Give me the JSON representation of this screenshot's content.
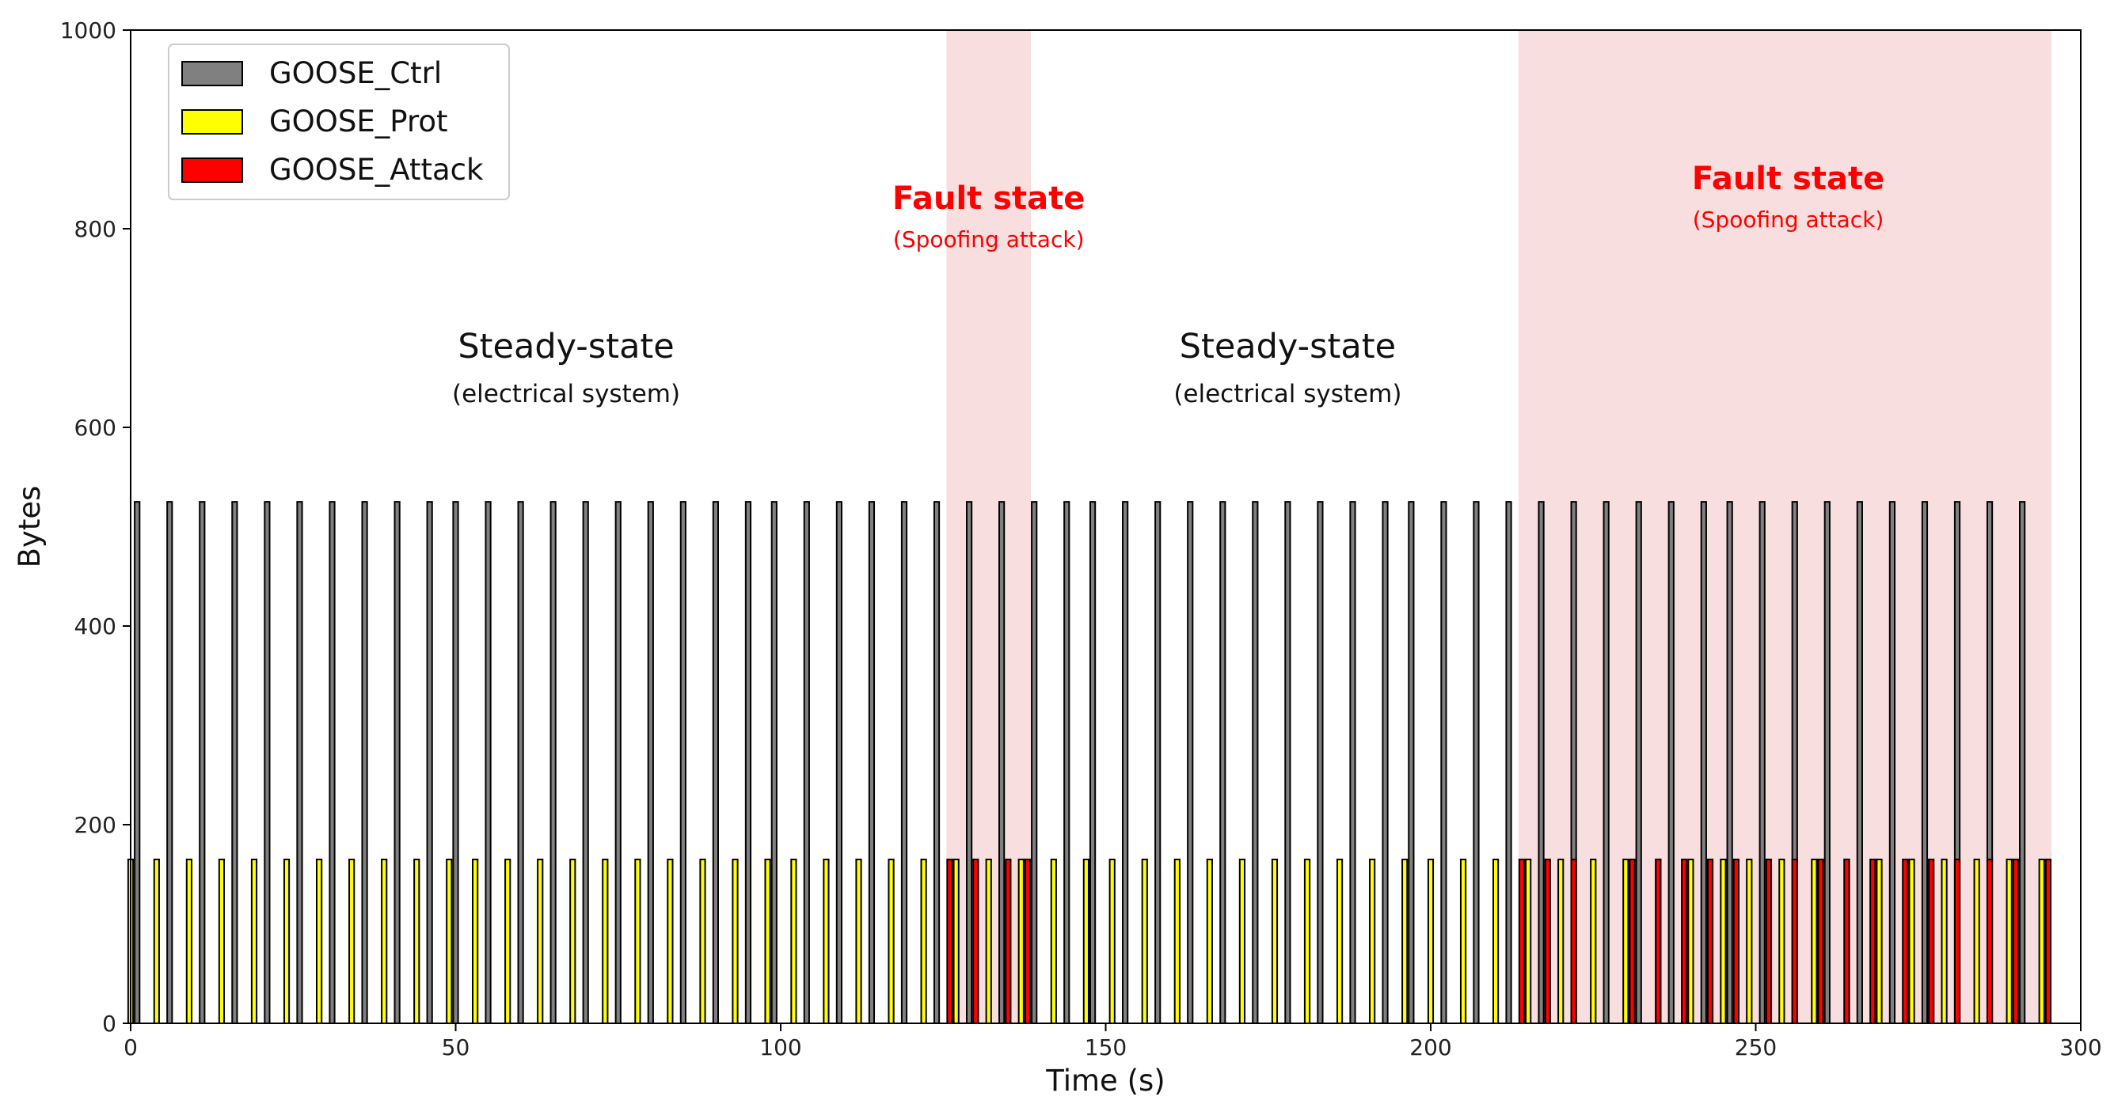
{
  "colors": {
    "ctrl": "#808080",
    "prot": "#ffff00",
    "attack": "#ff0000",
    "fault_region": "#f8dede",
    "fault_text": "#ff0000",
    "bar_edge": "#000000"
  },
  "chart_data": {
    "type": "bar",
    "title": "",
    "xlabel": "Time (s)",
    "ylabel": "Bytes",
    "xlim": [
      0,
      300
    ],
    "ylim": [
      0,
      1000
    ],
    "x_ticks": [
      0,
      50,
      100,
      150,
      200,
      250,
      300
    ],
    "y_ticks": [
      0,
      200,
      400,
      600,
      800,
      1000
    ],
    "grid": false,
    "legend_position": "top-left",
    "legend": [
      "GOOSE_Ctrl",
      "GOOSE_Prot",
      "GOOSE_Attack"
    ],
    "bar_width": 1.0,
    "series": [
      {
        "name": "GOOSE_Ctrl",
        "value": 525,
        "x": [
          1,
          6,
          11,
          16,
          21,
          26,
          31,
          36,
          41,
          46,
          50,
          55,
          60,
          65,
          70,
          75,
          80,
          85,
          90,
          95,
          99,
          104,
          109,
          114,
          119,
          124,
          129,
          134,
          139,
          144,
          148,
          153,
          158,
          163,
          168,
          173,
          178,
          183,
          188,
          193,
          197,
          202,
          207,
          212,
          217,
          222,
          227,
          232,
          237,
          242,
          246,
          251,
          256,
          261,
          266,
          271,
          276,
          281,
          286,
          291
        ]
      },
      {
        "name": "GOOSE_Prot",
        "value": 165,
        "x": [
          0,
          4,
          9,
          14,
          19,
          24,
          29,
          34,
          39,
          44,
          49,
          53,
          58,
          63,
          68,
          73,
          78,
          83,
          88,
          93,
          98,
          102,
          107,
          112,
          117,
          122,
          127,
          132,
          137,
          142,
          147,
          151,
          156,
          161,
          166,
          171,
          176,
          181,
          186,
          191,
          196,
          200,
          205,
          210,
          215,
          220,
          225,
          230,
          235,
          240,
          245,
          249,
          254,
          259,
          264,
          269,
          274,
          279,
          284,
          289,
          294
        ]
      },
      {
        "name": "GOOSE_Attack",
        "value": 165,
        "x": [
          126,
          130,
          135,
          138,
          214,
          218,
          222,
          231,
          235,
          239,
          243,
          247,
          252,
          256,
          260,
          264,
          268,
          273,
          277,
          281,
          286,
          290,
          295
        ]
      }
    ],
    "regions": [
      {
        "name": "fault-region-1",
        "x_start": 125.5,
        "x_end": 138.5
      },
      {
        "name": "fault-region-2",
        "x_start": 213.5,
        "x_end": 295.5
      }
    ],
    "annotations": [
      {
        "title": "Steady-state",
        "subtitle": "(electrical system)",
        "x": 67,
        "y": 670,
        "kind": "steady"
      },
      {
        "title": "Fault state",
        "subtitle": "(Spoofing attack)",
        "x": 132,
        "y": 820,
        "kind": "fault"
      },
      {
        "title": "Steady-state",
        "subtitle": "(electrical system)",
        "x": 178,
        "y": 670,
        "kind": "steady"
      },
      {
        "title": "Fault state",
        "subtitle": "(Spoofing attack)",
        "x": 255,
        "y": 840,
        "kind": "fault"
      }
    ]
  }
}
